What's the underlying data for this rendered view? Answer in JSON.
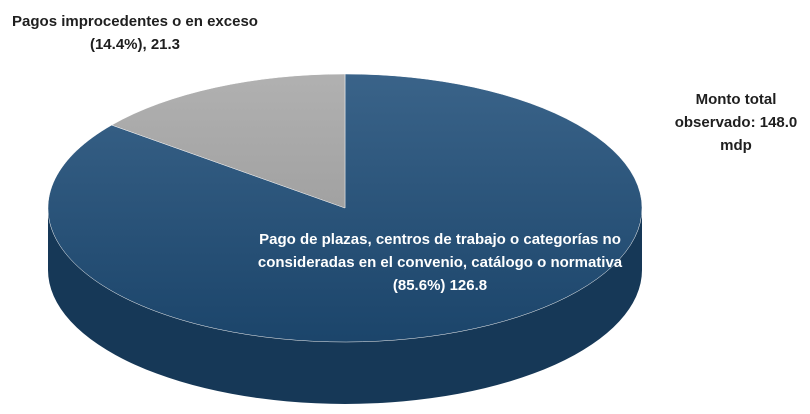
{
  "chart_data": {
    "type": "pie3d",
    "values": [
      126.8,
      21.3
    ],
    "value_labels": [
      "Pago de plazas, centros de trabajo o categorías no consideradas en el convenio, catálogo o normativa (85.6%) 126.8",
      "Pagos improcedentes o en exceso (14.4%), 21.3"
    ],
    "colors": [
      "#1f4e79",
      "#a6a6a6"
    ],
    "annotation": "Monto total observado: 148.0 mdp"
  }
}
